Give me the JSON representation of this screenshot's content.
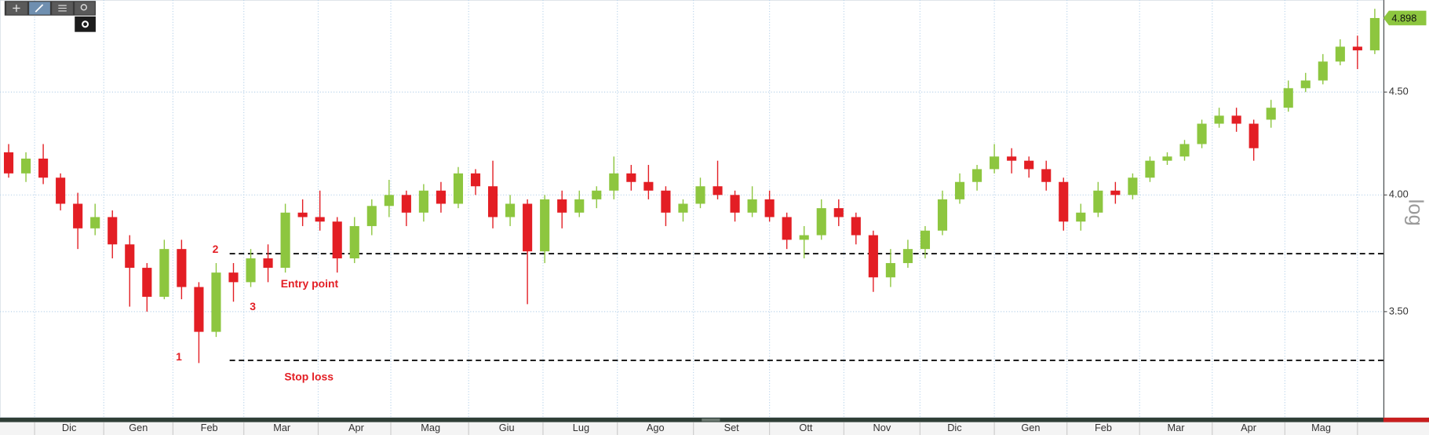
{
  "chart_data": {
    "type": "candlestick",
    "log_scale": true,
    "grid": true,
    "up_color": "#8dc63f",
    "down_color": "#e31e24",
    "ylabel": "log",
    "ylim": [
      3.1,
      5.0
    ],
    "yticks": [
      {
        "value": 3.5,
        "label": "3.50"
      },
      {
        "value": 4.0,
        "label": "4.00"
      },
      {
        "value": 4.5,
        "label": "4.50"
      }
    ],
    "last_price": 4.898,
    "xlim": [
      -0.5,
      79.5
    ],
    "xticks": [
      {
        "value": 3.5,
        "label": "Dic"
      },
      {
        "value": 7.5,
        "label": "Gen"
      },
      {
        "value": 11.6,
        "label": "Feb"
      },
      {
        "value": 15.8,
        "label": "Mar"
      },
      {
        "value": 20.1,
        "label": "Apr"
      },
      {
        "value": 24.4,
        "label": "Mag"
      },
      {
        "value": 28.8,
        "label": "Giu"
      },
      {
        "value": 33.1,
        "label": "Lug"
      },
      {
        "value": 37.4,
        "label": "Ago"
      },
      {
        "value": 41.8,
        "label": "Set"
      },
      {
        "value": 46.1,
        "label": "Ott"
      },
      {
        "value": 50.5,
        "label": "Nov"
      },
      {
        "value": 54.7,
        "label": "Dic"
      },
      {
        "value": 59.1,
        "label": "Gen"
      },
      {
        "value": 63.3,
        "label": "Feb"
      },
      {
        "value": 67.5,
        "label": "Mar"
      },
      {
        "value": 71.7,
        "label": "Apr"
      },
      {
        "value": 75.9,
        "label": "Mag"
      }
    ],
    "xgrid": [
      1.5,
      5.5,
      9.5,
      13.6,
      17.9,
      22.1,
      26.6,
      30.9,
      35.2,
      39.6,
      44.0,
      48.3,
      52.7,
      57.0,
      61.2,
      65.4,
      69.6,
      73.8,
      78.0
    ],
    "open": [
      4.2,
      4.1,
      4.17,
      4.08,
      3.96,
      3.85,
      3.9,
      3.78,
      3.68,
      3.56,
      3.76,
      3.6,
      3.42,
      3.66,
      3.62,
      3.72,
      3.68,
      3.92,
      3.9,
      3.88,
      3.72,
      3.86,
      3.95,
      4.0,
      3.92,
      4.02,
      3.96,
      4.1,
      4.04,
      3.9,
      3.96,
      3.75,
      3.98,
      3.92,
      3.98,
      4.02,
      4.1,
      4.06,
      4.02,
      3.92,
      3.96,
      4.04,
      4.0,
      3.92,
      3.98,
      3.9,
      3.8,
      3.82,
      3.94,
      3.9,
      3.82,
      3.64,
      3.7,
      3.76,
      3.84,
      3.98,
      4.06,
      4.12,
      4.18,
      4.16,
      4.12,
      4.06,
      3.88,
      3.92,
      4.02,
      4.0,
      4.08,
      4.16,
      4.18,
      4.24,
      4.34,
      4.38,
      4.34,
      4.36,
      4.42,
      4.52,
      4.56,
      4.66,
      4.74,
      4.72
    ],
    "high": [
      4.24,
      4.2,
      4.24,
      4.1,
      4.01,
      3.96,
      3.93,
      3.82,
      3.7,
      3.8,
      3.8,
      3.62,
      3.7,
      3.7,
      3.76,
      3.78,
      3.96,
      3.98,
      4.02,
      3.9,
      3.9,
      3.98,
      4.07,
      4.02,
      4.05,
      4.06,
      4.13,
      4.12,
      4.16,
      4.0,
      3.98,
      4.0,
      4.02,
      4.02,
      4.04,
      4.18,
      4.14,
      4.14,
      4.04,
      3.98,
      4.08,
      4.16,
      4.02,
      4.04,
      4.02,
      3.92,
      3.86,
      3.98,
      3.98,
      3.92,
      3.84,
      3.76,
      3.8,
      3.86,
      4.02,
      4.1,
      4.14,
      4.24,
      4.22,
      4.18,
      4.16,
      4.08,
      3.96,
      4.06,
      4.06,
      4.1,
      4.18,
      4.2,
      4.26,
      4.36,
      4.42,
      4.42,
      4.36,
      4.46,
      4.56,
      4.6,
      4.7,
      4.78,
      4.8,
      4.95
    ],
    "low": [
      4.08,
      4.06,
      4.05,
      3.93,
      3.76,
      3.82,
      3.72,
      3.52,
      3.5,
      3.55,
      3.55,
      3.3,
      3.4,
      3.54,
      3.6,
      3.62,
      3.66,
      3.86,
      3.84,
      3.66,
      3.7,
      3.82,
      3.9,
      3.86,
      3.88,
      3.92,
      3.94,
      4.0,
      3.85,
      3.86,
      3.53,
      3.7,
      3.85,
      3.9,
      3.94,
      3.98,
      4.02,
      3.98,
      3.86,
      3.88,
      3.94,
      3.98,
      3.88,
      3.9,
      3.88,
      3.76,
      3.72,
      3.8,
      3.86,
      3.78,
      3.58,
      3.6,
      3.68,
      3.72,
      3.82,
      3.96,
      4.02,
      4.1,
      4.1,
      4.08,
      4.02,
      3.84,
      3.84,
      3.9,
      3.96,
      3.98,
      4.06,
      4.14,
      4.16,
      4.22,
      4.32,
      4.3,
      4.16,
      4.32,
      4.4,
      4.5,
      4.54,
      4.64,
      4.62,
      4.7
    ],
    "close": [
      4.1,
      4.17,
      4.08,
      3.96,
      3.85,
      3.9,
      3.78,
      3.68,
      3.56,
      3.76,
      3.6,
      3.42,
      3.66,
      3.62,
      3.72,
      3.68,
      3.92,
      3.9,
      3.88,
      3.72,
      3.86,
      3.95,
      4.0,
      3.92,
      4.02,
      3.96,
      4.1,
      4.04,
      3.9,
      3.96,
      3.75,
      3.98,
      3.92,
      3.98,
      4.02,
      4.1,
      4.06,
      4.02,
      3.92,
      3.96,
      4.04,
      4.0,
      3.92,
      3.98,
      3.9,
      3.8,
      3.82,
      3.94,
      3.9,
      3.82,
      3.64,
      3.7,
      3.76,
      3.84,
      3.98,
      4.06,
      4.12,
      4.18,
      4.16,
      4.12,
      4.06,
      3.88,
      3.92,
      4.02,
      4.0,
      4.08,
      4.16,
      4.18,
      4.24,
      4.34,
      4.38,
      4.34,
      4.22,
      4.42,
      4.52,
      4.56,
      4.66,
      4.74,
      4.72,
      4.898
    ],
    "levels": [
      3.74,
      3.31
    ],
    "annotations": [
      "1",
      "2",
      "3",
      "Entry point",
      "Stop loss"
    ]
  }
}
